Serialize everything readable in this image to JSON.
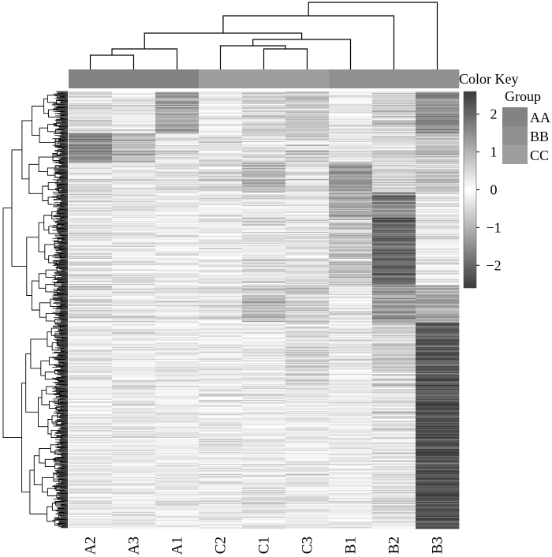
{
  "chart_data": {
    "type": "heatmap",
    "columns": [
      "A2",
      "A3",
      "A1",
      "C2",
      "C1",
      "C3",
      "B1",
      "B2",
      "B3"
    ],
    "column_groups": [
      "AA",
      "AA",
      "AA",
      "CC",
      "CC",
      "CC",
      "BB",
      "BB",
      "BB"
    ],
    "color_key": {
      "title": "Color Key",
      "ticks": [
        "2",
        "1",
        "0",
        "−1",
        "−2"
      ],
      "tick_values": [
        2,
        1,
        0,
        -1,
        -2
      ],
      "range": [
        -2.6,
        2.6
      ],
      "low_color": "#3a3a3a",
      "mid_color": "#ffffff",
      "high_color": "#3a3a3a"
    },
    "group_legend": {
      "title": "Group",
      "items": [
        {
          "label": "AA",
          "color": "#838383"
        },
        {
          "label": "BB",
          "color": "#909090"
        },
        {
          "label": "CC",
          "color": "#9e9e9e"
        }
      ]
    },
    "column_dendrogram": "((((A2,A3),A1),((C2,(C1,C3)),B1)),B2),B3",
    "row_segments": [
      {
        "rows": 50,
        "values": [
          -0.5,
          -0.3,
          -1.2,
          0.1,
          -0.6,
          -0.8,
          -0.2,
          -0.7,
          -1.5
        ]
      },
      {
        "rows": 35,
        "values": [
          -1.6,
          -1.0,
          -0.3,
          0.3,
          -0.4,
          -0.6,
          -0.3,
          -0.5,
          -0.8
        ]
      },
      {
        "rows": 35,
        "values": [
          -0.3,
          -0.2,
          -0.4,
          -0.5,
          -1.0,
          -0.4,
          -1.4,
          -0.6,
          -0.7
        ]
      },
      {
        "rows": 30,
        "values": [
          0.2,
          0.1,
          -0.1,
          -0.3,
          -0.3,
          -0.2,
          -1.2,
          -1.6,
          -0.3
        ]
      },
      {
        "rows": 80,
        "values": [
          0.3,
          0.3,
          0.1,
          -0.2,
          -0.4,
          -0.3,
          0.7,
          -2.0,
          -0.2
        ]
      },
      {
        "rows": 45,
        "values": [
          -0.5,
          -0.4,
          -0.3,
          -0.4,
          -0.9,
          -0.7,
          0.2,
          -1.4,
          -1.2
        ]
      },
      {
        "rows": 75,
        "values": [
          -0.3,
          -0.2,
          -0.3,
          -0.1,
          -0.2,
          -0.5,
          -0.2,
          -0.6,
          -2.2
        ]
      },
      {
        "rows": 90,
        "values": [
          -0.1,
          -0.1,
          -0.1,
          0.3,
          0.1,
          0.0,
          0.1,
          -0.4,
          -2.3
        ]
      },
      {
        "rows": 80,
        "values": [
          0.1,
          0.0,
          0.0,
          0.2,
          0.2,
          0.2,
          0.0,
          0.4,
          -2.3
        ]
      }
    ]
  }
}
